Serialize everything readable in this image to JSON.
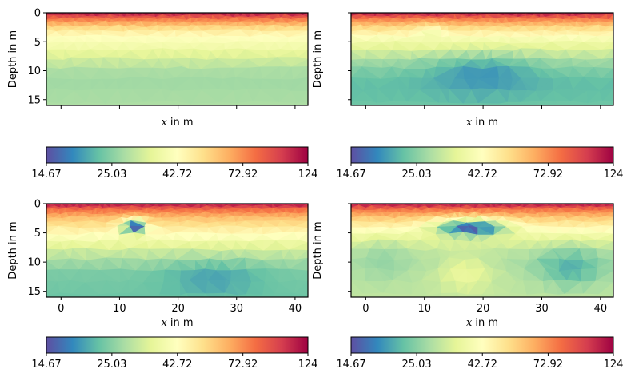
{
  "chart_data": [
    {
      "type": "heatmap",
      "panel": "top-left",
      "title": "",
      "xlabel": "$x$ in m",
      "ylabel": "Depth in m",
      "xlim": [
        -2.5,
        42.2
      ],
      "ylim": [
        16,
        0
      ],
      "yticks": [
        0,
        5,
        10,
        15
      ],
      "xticks": [
        0,
        10,
        20,
        30,
        40
      ],
      "show_xticklabels": false,
      "show_yticklabels": true,
      "grid": false,
      "depth_profile": [
        {
          "depth": 0.0,
          "value": 120
        },
        {
          "depth": 1.0,
          "value": 80
        },
        {
          "depth": 2.5,
          "value": 55
        },
        {
          "depth": 4.0,
          "value": 43
        },
        {
          "depth": 6.0,
          "value": 38
        },
        {
          "depth": 8.0,
          "value": 32
        },
        {
          "depth": 10.0,
          "value": 28
        },
        {
          "depth": 12.0,
          "value": 27
        },
        {
          "depth": 16.0,
          "value": 28
        }
      ],
      "anomalies": []
    },
    {
      "type": "heatmap",
      "panel": "top-right",
      "title": "",
      "xlabel": "$x$ in m",
      "ylabel": "Depth in m",
      "xlim": [
        -2.5,
        42.2
      ],
      "ylim": [
        16,
        0
      ],
      "yticks": [
        0,
        5,
        10,
        15
      ],
      "xticks": [
        0,
        10,
        20,
        30,
        40
      ],
      "show_xticklabels": false,
      "show_yticklabels": false,
      "grid": false,
      "depth_profile": [
        {
          "depth": 0.0,
          "value": 120
        },
        {
          "depth": 1.0,
          "value": 78
        },
        {
          "depth": 2.5,
          "value": 55
        },
        {
          "depth": 4.5,
          "value": 40
        },
        {
          "depth": 6.5,
          "value": 33
        },
        {
          "depth": 8.5,
          "value": 27
        },
        {
          "depth": 11.0,
          "value": 23
        },
        {
          "depth": 13.0,
          "value": 22
        },
        {
          "depth": 16.0,
          "value": 23
        }
      ],
      "anomalies": [
        {
          "x": 20,
          "depth": 11,
          "rx": 11,
          "rz": 4,
          "value": 19
        },
        {
          "x": 11,
          "depth": 4,
          "rx": 3,
          "rz": 2,
          "value": 38
        }
      ]
    },
    {
      "type": "heatmap",
      "panel": "bottom-left",
      "title": "",
      "xlabel": "$x$ in m",
      "ylabel": "Depth in m",
      "xlim": [
        -2.5,
        42.2
      ],
      "ylim": [
        16,
        0
      ],
      "yticks": [
        0,
        5,
        10,
        15
      ],
      "xticks": [
        0,
        10,
        20,
        30,
        40
      ],
      "show_xticklabels": true,
      "show_yticklabels": true,
      "grid": false,
      "depth_profile": [
        {
          "depth": 0.0,
          "value": 120
        },
        {
          "depth": 1.0,
          "value": 82
        },
        {
          "depth": 2.5,
          "value": 60
        },
        {
          "depth": 4.0,
          "value": 50
        },
        {
          "depth": 6.0,
          "value": 40
        },
        {
          "depth": 8.0,
          "value": 32
        },
        {
          "depth": 10.0,
          "value": 27
        },
        {
          "depth": 12.0,
          "value": 24
        },
        {
          "depth": 16.0,
          "value": 23
        }
      ],
      "anomalies": [
        {
          "x": 12.5,
          "depth": 4,
          "rx": 2.6,
          "rz": 1.6,
          "value": 15
        },
        {
          "x": 26,
          "depth": 13,
          "rx": 10,
          "rz": 3.5,
          "value": 20
        }
      ]
    },
    {
      "type": "heatmap",
      "panel": "bottom-right",
      "title": "",
      "xlabel": "$x$ in m",
      "ylabel": "Depth in m",
      "xlim": [
        -2.5,
        42.2
      ],
      "ylim": [
        16,
        0
      ],
      "yticks": [
        0,
        5,
        10,
        15
      ],
      "xticks": [
        0,
        10,
        20,
        30,
        40
      ],
      "show_xticklabels": true,
      "show_yticklabels": false,
      "grid": false,
      "depth_profile": [
        {
          "depth": 0.0,
          "value": 120
        },
        {
          "depth": 1.0,
          "value": 80
        },
        {
          "depth": 2.5,
          "value": 58
        },
        {
          "depth": 4.0,
          "value": 46
        },
        {
          "depth": 6.0,
          "value": 36
        },
        {
          "depth": 8.0,
          "value": 30
        },
        {
          "depth": 10.0,
          "value": 28
        },
        {
          "depth": 12.0,
          "value": 29
        },
        {
          "depth": 16.0,
          "value": 30
        }
      ],
      "anomalies": [
        {
          "x": 18,
          "depth": 4.2,
          "rx": 7.5,
          "rz": 1.8,
          "value": 15
        },
        {
          "x": 35,
          "depth": 11,
          "rx": 7,
          "rz": 4,
          "value": 21
        },
        {
          "x": 3,
          "depth": 10,
          "rx": 5,
          "rz": 4,
          "value": 26
        },
        {
          "x": 17,
          "depth": 12,
          "rx": 6,
          "rz": 4,
          "value": 36
        }
      ]
    }
  ],
  "colorbar": {
    "colormap": "Spectral_r",
    "scale": "log",
    "vmin": 14.67,
    "vmax": 124,
    "ticks": [
      14.67,
      25.03,
      42.72,
      72.92,
      124
    ],
    "ticklabels": [
      "14.67",
      "25.03",
      "42.72",
      "72.92",
      "124"
    ],
    "stops": [
      "#5e4fa2",
      "#3288bd",
      "#66c2a5",
      "#abdda4",
      "#e6f598",
      "#ffffbf",
      "#fee08b",
      "#fdae61",
      "#f46d43",
      "#d53e4f",
      "#9e0142"
    ]
  }
}
